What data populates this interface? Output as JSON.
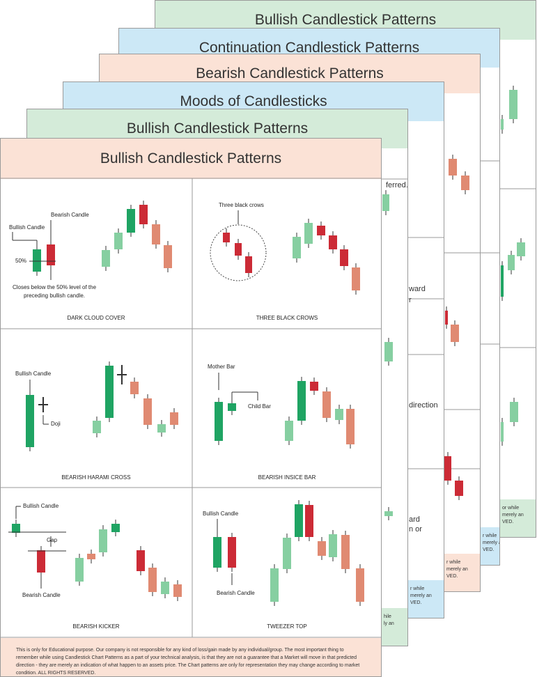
{
  "sheets": [
    {
      "title": "Bullish Candlestick Patterns",
      "fragments": [],
      "footer_fragments": [
        "or while",
        "merely an",
        "VED."
      ]
    },
    {
      "title": "Continuation Candlestick Patterns",
      "fragments": [],
      "footer_fragments": [
        "r while",
        "merely an",
        "VED."
      ]
    },
    {
      "title": "Bearish Candlestick Patterns",
      "fragments": [],
      "footer_fragments": [
        "r while",
        "merely an",
        "VED."
      ]
    },
    {
      "title": "Moods of Candlesticks",
      "fragments": [
        "ward",
        "r",
        "direction",
        "ard",
        "n or"
      ],
      "footer_fragments": [
        "r while",
        "merely an",
        "VED."
      ]
    },
    {
      "title": "Bullish Candlestick Patterns",
      "fragments": [
        "ferred."
      ],
      "footer_fragments": [
        "hile",
        "ly an"
      ]
    }
  ],
  "front": {
    "title": "Bullish Candlestick Patterns",
    "cells": [
      {
        "label": "DARK CLOUD COVER",
        "notes": [
          "Bearish Candle",
          "Bullish Candle",
          "50%",
          "Closes below the 50% level of the preceding bullish candle."
        ]
      },
      {
        "label": "THREE BLACK CROWS",
        "notes": [
          "Three black crows"
        ]
      },
      {
        "label": "BEARISH HARAMI CROSS",
        "notes": [
          "Bullish Candle",
          "Doji"
        ]
      },
      {
        "label": "BEARISH INSICE BAR",
        "notes": [
          "Mother Bar",
          "Child Bar"
        ]
      },
      {
        "label": "BEARISH KICKER",
        "notes": [
          "Bullish Candle",
          "Gap",
          "Bearish Candle"
        ]
      },
      {
        "label": "TWEEZER TOP",
        "notes": [
          "Bullish Candle",
          "Bearish Candle"
        ]
      }
    ],
    "disclaimer": "This is only for Educational purpose. Our company is not responsible for any kind of loss/gain made by any individual/group. The most important thing to remember while using Candlestick Chart Patterns as a part of your technical analysis, is that they are not a guarantee that a Market will move in that predicted direction - they are merely an indication of what happen to an assets price. The Chart patterns are only for representation they may change according to market condition. ALL RIGHTS RESERVED."
  }
}
